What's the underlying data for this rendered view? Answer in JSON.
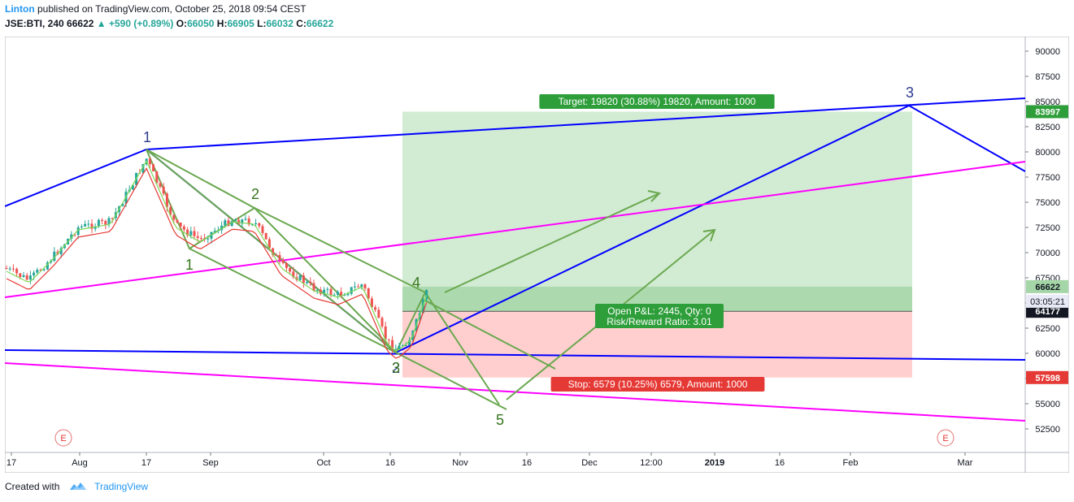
{
  "header": {
    "author": "Linton",
    "published_text": " published on TradingView.com, October 25, 2018 09:54 CEST",
    "symbol": "JSE:BTI, 240",
    "last": "66622",
    "change": "▲ +590 (+0.89%)",
    "o_label": "O:",
    "o_value": "66050",
    "h_label": "H:",
    "h_value": "66905",
    "l_label": "L:",
    "l_value": "66032",
    "c_label": "C:",
    "c_value": "66622"
  },
  "footer": {
    "created_with": "Created with",
    "brand": "TradingView"
  },
  "colors": {
    "up": "#26a69a",
    "down": "#ef5350",
    "blue_line": "#0000ff",
    "magenta_line": "#ff00ff",
    "green_wave": "#6aa84f",
    "ma_red": "#e53935",
    "ma_green": "#7ed957",
    "target_zone": "rgba(76,175,80,0.25)",
    "stop_zone": "rgba(255,82,82,0.28)",
    "wave_label": "#38761d",
    "wave_label_blue": "#2d3a8c"
  },
  "chart_data": {
    "type": "candlestick",
    "y_axis_ticks": [
      "90000",
      "87500",
      "85000",
      "82500",
      "80000",
      "77500",
      "75000",
      "72500",
      "70000",
      "67500",
      "65000",
      "62500",
      "60000",
      "57500",
      "55000",
      "52500"
    ],
    "x_axis_ticks": [
      "17",
      "Aug",
      "17",
      "Sep",
      "Oct",
      "16",
      "Nov",
      "16",
      "Dec",
      "12:00",
      "2019",
      "16",
      "Feb",
      "Mar"
    ],
    "ylim": [
      50500,
      91500
    ],
    "price_labels": [
      {
        "value": 83997,
        "text": "83997",
        "style": "green"
      },
      {
        "value": 66622,
        "text": "66622",
        "style": "lightgreen"
      },
      {
        "value": 64177,
        "text": "64177",
        "style": "dark"
      },
      {
        "value": 57598,
        "text": "57598",
        "style": "red"
      }
    ],
    "countdown": "03:05:21",
    "target_label": "Target: 19820 (30.88%) 19820, Amount: 1000",
    "stop_label": "Stop: 6579 (10.25%) 6579, Amount: 1000",
    "pnl_label_line1": "Open P&L: 2445, Qty: 0",
    "pnl_label_line2": "Risk/Reward Ratio: 3.01",
    "entry": 64177,
    "target": 83997,
    "stop": 57598,
    "waves_blue": [
      {
        "label": "1",
        "value": 80300
      },
      {
        "label": "2",
        "value": 60000
      },
      {
        "label": "3",
        "value": 84500
      }
    ],
    "waves_green": [
      {
        "label": "1",
        "value": 70200
      },
      {
        "label": "2",
        "value": 74700
      },
      {
        "label": "3",
        "value": 59800
      },
      {
        "label": "4",
        "value": 65600
      },
      {
        "label": "5",
        "value": 54500
      }
    ],
    "event_markers": [
      "E",
      "E"
    ]
  }
}
